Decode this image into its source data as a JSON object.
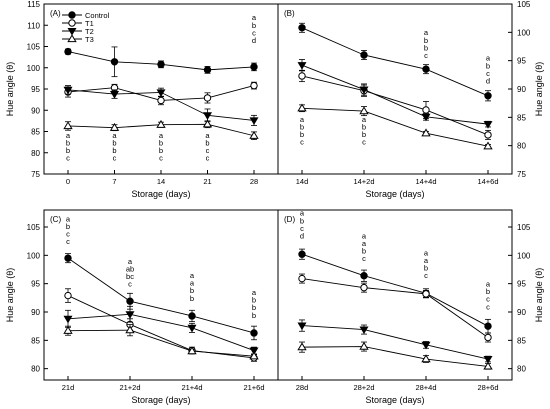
{
  "chart_data": [
    {
      "type": "line",
      "panel_label": "(A)",
      "xlabel": "Storage (days)",
      "ylabel": "Hue angle (θ)",
      "y_axis_side": "left",
      "categories": [
        "0",
        "7",
        "14",
        "21",
        "28"
      ],
      "ylim": [
        75,
        115
      ],
      "yticks": [
        75,
        80,
        85,
        90,
        95,
        100,
        105,
        110,
        115
      ],
      "legend_position": "top-left",
      "series": [
        {
          "name": "Control",
          "marker": "filled-circle",
          "values": [
            103.8,
            101.4,
            100.8,
            99.5,
            100.2
          ],
          "errors": [
            0.6,
            3.5,
            0.8,
            0.8,
            0.9
          ]
        },
        {
          "name": "T1",
          "marker": "open-circle",
          "values": [
            94.3,
            95.3,
            92.3,
            92.9,
            95.8
          ],
          "errors": [
            1.2,
            0.8,
            1.0,
            1.2,
            0.8
          ]
        },
        {
          "name": "T2",
          "marker": "filled-triangle-down",
          "values": [
            94.8,
            93.8,
            94.2,
            88.8,
            87.6
          ],
          "errors": [
            1.0,
            1.0,
            1.0,
            1.5,
            1.2
          ]
        },
        {
          "name": "T3",
          "marker": "open-triangle-up",
          "values": [
            86.3,
            85.9,
            86.6,
            86.7,
            84.0
          ],
          "errors": [
            1.0,
            0.7,
            0.6,
            0.8,
            0.9
          ]
        }
      ],
      "annotations": [
        {
          "x_index": 0,
          "y": 83.5,
          "lines": [
            "a",
            "b",
            "b",
            "c"
          ]
        },
        {
          "x_index": 1,
          "y": 83.5,
          "lines": [
            "a",
            "b",
            "b",
            "c"
          ]
        },
        {
          "x_index": 2,
          "y": 83.5,
          "lines": [
            "a",
            "b",
            "b",
            "c"
          ]
        },
        {
          "x_index": 3,
          "y": 83.5,
          "lines": [
            "a",
            "b",
            "c",
            "c"
          ]
        },
        {
          "x_index": 4,
          "y": 111.2,
          "lines": [
            "a",
            "b",
            "c",
            "d"
          ]
        }
      ]
    },
    {
      "type": "line",
      "panel_label": "(B)",
      "xlabel": "Storage (days)",
      "ylabel": "Hue angle (θ)",
      "y_axis_side": "right",
      "categories": [
        "14d",
        "14+2d",
        "14+4d",
        "14+6d"
      ],
      "ylim": [
        75,
        105
      ],
      "yticks": [
        75,
        80,
        85,
        90,
        95,
        100,
        105
      ],
      "series": [
        {
          "name": "Control",
          "marker": "filled-circle",
          "values": [
            100.8,
            96.0,
            93.5,
            88.8
          ],
          "errors": [
            0.8,
            0.8,
            0.8,
            0.9
          ]
        },
        {
          "name": "T1",
          "marker": "open-circle",
          "values": [
            92.3,
            89.7,
            86.3,
            81.9
          ],
          "errors": [
            1.0,
            1.0,
            1.5,
            0.8
          ]
        },
        {
          "name": "T2",
          "marker": "filled-triangle-down",
          "values": [
            94.2,
            89.9,
            85.1,
            83.8
          ],
          "errors": [
            1.0,
            1.0,
            0.6,
            0.5
          ]
        },
        {
          "name": "T3",
          "marker": "open-triangle-up",
          "values": [
            86.6,
            86.1,
            82.2,
            79.9
          ],
          "errors": [
            0.6,
            0.8,
            0.3,
            0.3
          ]
        }
      ],
      "annotations": [
        {
          "x_index": 0,
          "y": 84.2,
          "lines": [
            "a",
            "b",
            "b",
            "c"
          ]
        },
        {
          "x_index": 1,
          "y": 84.2,
          "lines": [
            "a",
            "b",
            "b",
            "c"
          ]
        },
        {
          "x_index": 2,
          "y": 99.5,
          "lines": [
            "a",
            "b",
            "b",
            "c"
          ]
        },
        {
          "x_index": 3,
          "y": 95.0,
          "lines": [
            "a",
            "b",
            "c",
            "d"
          ]
        }
      ]
    },
    {
      "type": "line",
      "panel_label": "(C)",
      "xlabel": "Storage (days)",
      "ylabel": "Hue angle (θ)",
      "y_axis_side": "left",
      "categories": [
        "21d",
        "21+2d",
        "21+4d",
        "21+6d"
      ],
      "ylim": [
        78,
        108
      ],
      "yticks": [
        80,
        85,
        90,
        95,
        100,
        105
      ],
      "series": [
        {
          "name": "Control",
          "marker": "filled-circle",
          "values": [
            99.5,
            91.9,
            89.3,
            86.3
          ],
          "errors": [
            0.8,
            1.4,
            1.0,
            1.2
          ]
        },
        {
          "name": "T1",
          "marker": "open-circle",
          "values": [
            92.9,
            87.8,
            83.2,
            81.9
          ],
          "errors": [
            1.2,
            1.0,
            0.6,
            0.6
          ]
        },
        {
          "name": "T2",
          "marker": "filled-triangle-down",
          "values": [
            88.8,
            89.6,
            87.2,
            83.2
          ],
          "errors": [
            1.5,
            1.4,
            0.8,
            0.6
          ]
        },
        {
          "name": "T3",
          "marker": "open-triangle-up",
          "values": [
            86.7,
            86.8,
            83.1,
            82.2
          ],
          "errors": [
            0.8,
            1.0,
            0.3,
            0.3
          ]
        }
      ],
      "annotations": [
        {
          "x_index": 0,
          "y": 106.0,
          "lines": [
            "a",
            "b",
            "c",
            "c"
          ]
        },
        {
          "x_index": 1,
          "y": 98.5,
          "lines": [
            "a",
            "ab",
            "bc",
            "c"
          ]
        },
        {
          "x_index": 2,
          "y": 96.0,
          "lines": [
            "a",
            "a",
            "b",
            "b"
          ]
        },
        {
          "x_index": 3,
          "y": 93.0,
          "lines": [
            "a",
            "b",
            "b",
            "b"
          ]
        }
      ]
    },
    {
      "type": "line",
      "panel_label": "(D)",
      "xlabel": "Storage (days)",
      "ylabel": "Hue angle (θ)",
      "y_axis_side": "right",
      "categories": [
        "28d",
        "28+2d",
        "28+4d",
        "28+6d"
      ],
      "ylim": [
        78,
        108
      ],
      "yticks": [
        80,
        85,
        90,
        95,
        100,
        105
      ],
      "series": [
        {
          "name": "Control",
          "marker": "filled-circle",
          "values": [
            100.2,
            96.4,
            93.3,
            87.5
          ],
          "errors": [
            0.9,
            1.0,
            0.8,
            1.2
          ]
        },
        {
          "name": "T1",
          "marker": "open-circle",
          "values": [
            95.9,
            94.3,
            93.2,
            85.5
          ],
          "errors": [
            0.8,
            0.8,
            0.6,
            0.8
          ]
        },
        {
          "name": "T2",
          "marker": "filled-triangle-down",
          "values": [
            87.6,
            86.9,
            84.2,
            81.7
          ],
          "errors": [
            1.0,
            0.8,
            0.6,
            0.5
          ]
        },
        {
          "name": "T3",
          "marker": "open-triangle-up",
          "values": [
            83.8,
            83.9,
            81.7,
            80.4
          ],
          "errors": [
            0.9,
            0.8,
            0.6,
            0.5
          ]
        }
      ],
      "annotations": [
        {
          "x_index": 0,
          "y": 107.0,
          "lines": [
            "a",
            "b",
            "c",
            "d"
          ]
        },
        {
          "x_index": 1,
          "y": 103.0,
          "lines": [
            "a",
            "a",
            "b",
            "c"
          ]
        },
        {
          "x_index": 2,
          "y": 100.0,
          "lines": [
            "a",
            "a",
            "b",
            "c"
          ]
        },
        {
          "x_index": 3,
          "y": 94.5,
          "lines": [
            "a",
            "b",
            "c",
            "c"
          ]
        }
      ]
    }
  ]
}
